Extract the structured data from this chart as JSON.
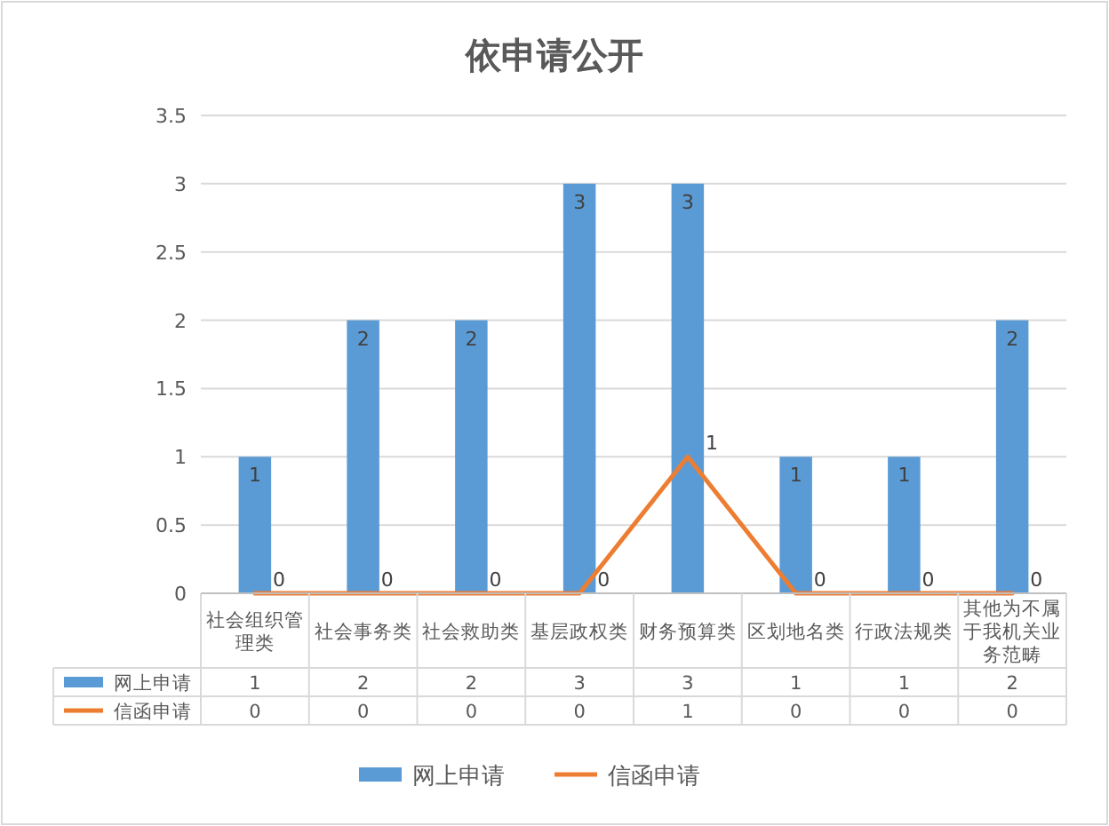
{
  "chart_data": {
    "type": "bar",
    "title": "依申请公开",
    "categories": [
      "社会组织管理类",
      "社会事务类",
      "社会救助类",
      "基层政权类",
      "财务预算类",
      "区划地名类",
      "行政法规类",
      "其他为不属于我机关业务范畴"
    ],
    "series": [
      {
        "name": "网上申请",
        "color": "#5b9bd5",
        "values": [
          1,
          2,
          2,
          3,
          3,
          1,
          1,
          2
        ],
        "value_labels": [
          "1",
          "2",
          "2",
          "3",
          "3",
          "1",
          "1",
          "2"
        ]
      },
      {
        "name": "信函申请",
        "color": "#ed7d31",
        "type": "line",
        "values": [
          0,
          0,
          0,
          0,
          1,
          0,
          0,
          0
        ],
        "value_labels": [
          "0",
          "0",
          "0",
          "0",
          "1",
          "0",
          "0",
          "0"
        ]
      }
    ],
    "ylim": [
      0,
      3.5
    ],
    "yticks": [
      0,
      0.5,
      1,
      1.5,
      2,
      2.5,
      3,
      3.5
    ],
    "grid": "y",
    "legend": "bottom",
    "data_labels": true
  }
}
